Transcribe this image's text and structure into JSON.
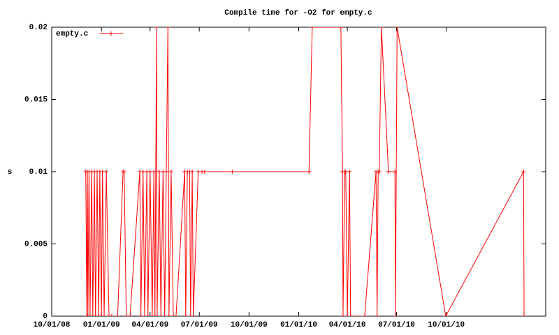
{
  "chart_data": {
    "type": "line",
    "title": "Compile time for -O2 for empty.c",
    "y_label": "s",
    "legend_position": "top-left",
    "x": [
      "2008-12-03",
      "2008-12-05",
      "2008-12-06",
      "2008-12-07",
      "2008-12-09",
      "2008-12-11",
      "2008-12-14",
      "2008-12-16",
      "2008-12-19",
      "2008-12-21",
      "2008-12-24",
      "2008-12-27",
      "2008-12-29",
      "2009-01-01",
      "2009-01-03",
      "2009-01-06",
      "2009-01-10",
      "2009-01-15",
      "2009-01-20",
      "2009-01-31",
      "2009-02-10",
      "2009-02-12",
      "2009-02-16",
      "2009-02-23",
      "2009-03-13",
      "2009-03-15",
      "2009-03-19",
      "2009-03-22",
      "2009-03-26",
      "2009-03-28",
      "2009-04-01",
      "2009-04-05",
      "2009-04-08",
      "2009-04-10",
      "2009-04-13",
      "2009-04-14",
      "2009-04-18",
      "2009-04-21",
      "2009-04-25",
      "2009-04-28",
      "2009-05-01",
      "2009-05-04",
      "2009-05-06",
      "2009-05-10",
      "2009-05-14",
      "2009-05-19",
      "2009-06-04",
      "2009-06-06",
      "2009-06-09",
      "2009-06-13",
      "2009-06-15",
      "2009-06-18",
      "2009-06-20",
      "2009-06-29",
      "2009-07-06",
      "2009-07-11",
      "2009-08-31",
      "2010-01-20",
      "2010-01-26",
      "2010-03-20",
      "2010-03-23",
      "2010-03-24",
      "2010-03-27",
      "2010-03-29",
      "2010-04-01",
      "2010-04-05",
      "2010-04-07",
      "2010-05-03",
      "2010-05-24",
      "2010-05-26",
      "2010-05-28",
      "2010-05-30",
      "2010-06-03",
      "2010-06-16",
      "2010-06-28",
      "2010-06-29",
      "2010-07-02",
      "2010-09-30",
      "2011-02-21",
      "2011-02-22"
    ],
    "series": [
      {
        "name": "empty.c",
        "color": "#ff0000",
        "values": [
          0.01,
          0,
          0.01,
          0,
          0.01,
          0,
          0.01,
          0,
          0.01,
          0,
          0.01,
          0,
          0.01,
          0,
          0.01,
          0,
          0.01,
          0,
          0,
          0,
          0.01,
          0.01,
          0,
          0,
          0.01,
          0,
          0.01,
          0,
          0.01,
          0,
          0.01,
          0,
          0.01,
          0,
          0.02,
          0,
          0.01,
          0,
          0.01,
          0,
          0.01,
          0.02,
          0,
          0.01,
          0,
          0,
          0.01,
          0,
          0.01,
          0.01,
          0,
          0.01,
          0,
          0.01,
          0.01,
          0.01,
          0.01,
          0.01,
          0.02,
          0.02,
          0.01,
          0,
          0.01,
          0.01,
          0,
          0.01,
          0,
          0,
          0.01,
          0,
          0.01,
          0.01,
          0.02,
          0.01,
          0.01,
          0,
          0.02,
          0,
          0.01,
          0
        ]
      }
    ],
    "xlim": [
      "2008-10-01",
      "2011-04-03"
    ],
    "xticks": [
      {
        "value": "2008-10-01",
        "label": "10/01/08"
      },
      {
        "value": "2009-01-01",
        "label": "01/01/09"
      },
      {
        "value": "2009-04-01",
        "label": "04/01/09"
      },
      {
        "value": "2009-07-01",
        "label": "07/01/09"
      },
      {
        "value": "2009-10-01",
        "label": "10/01/09"
      },
      {
        "value": "2010-01-01",
        "label": "01/01/10"
      },
      {
        "value": "2010-04-01",
        "label": "04/01/10"
      },
      {
        "value": "2010-07-01",
        "label": "07/01/10"
      },
      {
        "value": "2010-10-01",
        "label": "10/01/10"
      }
    ],
    "ylim": [
      0,
      0.02
    ],
    "yticks": [
      0,
      0.005,
      0.01,
      0.015,
      0.02
    ]
  }
}
